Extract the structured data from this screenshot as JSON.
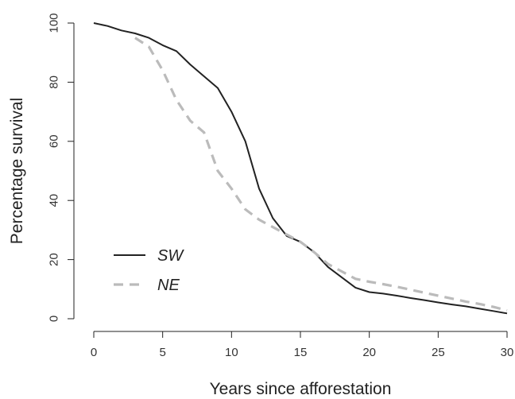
{
  "chart_data": {
    "type": "line",
    "xlabel": "Years since afforestation",
    "ylabel": "Percentage survival",
    "xlim": [
      0,
      30
    ],
    "ylim": [
      0,
      100
    ],
    "xticks": [
      0,
      5,
      10,
      15,
      20,
      25,
      30
    ],
    "yticks": [
      0,
      20,
      40,
      60,
      80,
      100
    ],
    "grid": false,
    "legend_position": "bottom-left",
    "series": [
      {
        "name": "SW",
        "color": "#222222",
        "line_style": "solid",
        "x": [
          0,
          1,
          2,
          3,
          4,
          5,
          6,
          7,
          8,
          9,
          10,
          11,
          12,
          13,
          14,
          15,
          16,
          17,
          18,
          19,
          20,
          21,
          22,
          23,
          24,
          25,
          26,
          27,
          28,
          29,
          30
        ],
        "y": [
          100,
          99,
          97.5,
          96.5,
          95,
          92.5,
          90.5,
          86,
          82,
          78,
          70,
          60,
          44,
          34,
          28,
          26,
          22.5,
          17.5,
          14,
          10.5,
          9,
          8.5,
          7.8,
          7,
          6.3,
          5.5,
          4.8,
          4.2,
          3.4,
          2.6,
          1.8
        ]
      },
      {
        "name": "NE",
        "color": "#bbbbbb",
        "line_style": "dashed",
        "x": [
          3,
          4,
          5,
          6,
          7,
          8,
          9,
          10,
          11,
          12,
          13,
          14,
          15,
          16,
          17,
          18,
          19,
          20,
          21,
          22,
          23,
          24,
          25,
          26,
          27,
          28,
          29,
          30
        ],
        "y": [
          95,
          92,
          84,
          74,
          67,
          63,
          50,
          44,
          37,
          33.5,
          31,
          28.5,
          26,
          22.5,
          18.5,
          16,
          13.5,
          12.5,
          11.7,
          10.8,
          9.8,
          8.8,
          7.8,
          6.8,
          5.8,
          5,
          4,
          2.8
        ]
      }
    ]
  }
}
